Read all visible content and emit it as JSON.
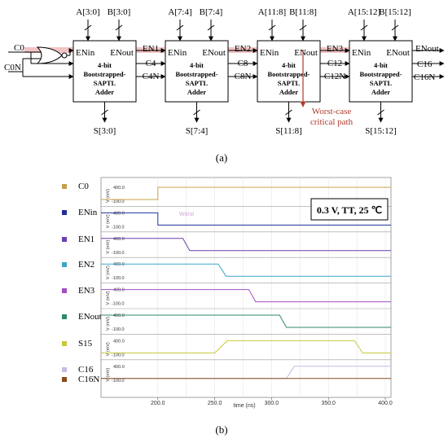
{
  "panel_a": {
    "label": "(a)",
    "inputs": {
      "c0": "C0",
      "c0n": "C0N"
    },
    "blocks": [
      {
        "a_bus": "A[3:0]",
        "b_bus": "B[3:0]",
        "en_in": "ENin",
        "en_out": "ENout",
        "line1": "4-bit",
        "line2": "Bootstrapped-",
        "line3": "SAPTL",
        "line4": "Adder",
        "sum": "S[3:0]"
      },
      {
        "a_bus": "A[7:4]",
        "b_bus": "B[7:4]",
        "en_in": "ENin",
        "en_out": "ENout",
        "line1": "4-bit",
        "line2": "Bootstrapped-",
        "line3": "SAPTL",
        "line4": "Adder",
        "sum": "S[7:4]"
      },
      {
        "a_bus": "A[11:8]",
        "b_bus": "B[11:8]",
        "en_in": "ENin",
        "en_out": "ENout",
        "line1": "4-bit",
        "line2": "Bootstrapped-",
        "line3": "SAPTL",
        "line4": "Adder",
        "sum": "S[11:8]"
      },
      {
        "a_bus": "A[15:12]",
        "b_bus": "B[15:12]",
        "en_in": "ENin",
        "en_out": "ENout",
        "line1": "4-bit",
        "line2": "Bootstrapped-",
        "line3": "SAPTL",
        "line4": "Adder",
        "sum": "S[15:12]"
      }
    ],
    "links": [
      {
        "en": "EN1",
        "c": "C4",
        "cn": "C4N"
      },
      {
        "en": "EN2",
        "c": "C8",
        "cn": "C8N"
      },
      {
        "en": "EN3",
        "c": "C12",
        "cn": "C12N"
      }
    ],
    "outputs": {
      "en_out": "ENout",
      "c": "C16",
      "cn": "C16N"
    },
    "critical_path": [
      "Worst-case",
      "critical path"
    ],
    "colors": {
      "critical_path": "#b03a2e",
      "highlight": "#f2c4c4"
    }
  },
  "panel_b": {
    "label": "(b)",
    "condition": "0.3 V, TT, 25 ℃",
    "ylabel": "V (mV)",
    "xlabel": "time (ns)",
    "xticks": [
      "200.0",
      "250.0",
      "300.0",
      "350.0",
      "400.0"
    ],
    "hi_label": "400.0",
    "lo_label": "-100.0",
    "overlay_note": "Worst",
    "traces": [
      {
        "name": "C0",
        "color": "#c8a04a"
      },
      {
        "name": "ENin",
        "color": "#1f2f9a"
      },
      {
        "name": "EN1",
        "color": "#6a3fb0"
      },
      {
        "name": "EN2",
        "color": "#3aa6c8"
      },
      {
        "name": "EN3",
        "color": "#a34fc2"
      },
      {
        "name": "ENout",
        "color": "#2f8a6a"
      },
      {
        "name": "S15",
        "color": "#c8c83a"
      },
      {
        "name": "C16",
        "color": "#c9b9e6"
      },
      {
        "name": "C16N",
        "color": "#8a4a1a"
      }
    ]
  },
  "chart_data": {
    "type": "line",
    "xlabel": "time (ns)",
    "ylabel": "V (mV)",
    "xlim": [
      150,
      405
    ],
    "ylim": [
      -100,
      400
    ],
    "grid": true,
    "series": [
      {
        "name": "C0",
        "x": [
          150,
          200,
          200,
          405
        ],
        "y": [
          0,
          0,
          300,
          300
        ]
      },
      {
        "name": "ENin",
        "x": [
          150,
          200,
          200,
          405
        ],
        "y": [
          300,
          300,
          0,
          0
        ]
      },
      {
        "name": "EN1",
        "x": [
          150,
          222,
          228,
          405
        ],
        "y": [
          300,
          300,
          0,
          0
        ]
      },
      {
        "name": "EN2",
        "x": [
          150,
          253,
          260,
          405
        ],
        "y": [
          300,
          300,
          0,
          0
        ]
      },
      {
        "name": "EN3",
        "x": [
          150,
          280,
          286,
          405
        ],
        "y": [
          300,
          300,
          0,
          0
        ]
      },
      {
        "name": "ENout",
        "x": [
          150,
          307,
          313,
          405
        ],
        "y": [
          300,
          300,
          0,
          0
        ]
      },
      {
        "name": "S15",
        "x": [
          150,
          250,
          261,
          373,
          380,
          405
        ],
        "y": [
          0,
          0,
          300,
          300,
          0,
          0
        ]
      },
      {
        "name": "C16",
        "x": [
          150,
          313,
          320,
          405
        ],
        "y": [
          0,
          0,
          300,
          300
        ]
      },
      {
        "name": "C16N",
        "x": [
          150,
          405
        ],
        "y": [
          0,
          0
        ]
      }
    ]
  }
}
